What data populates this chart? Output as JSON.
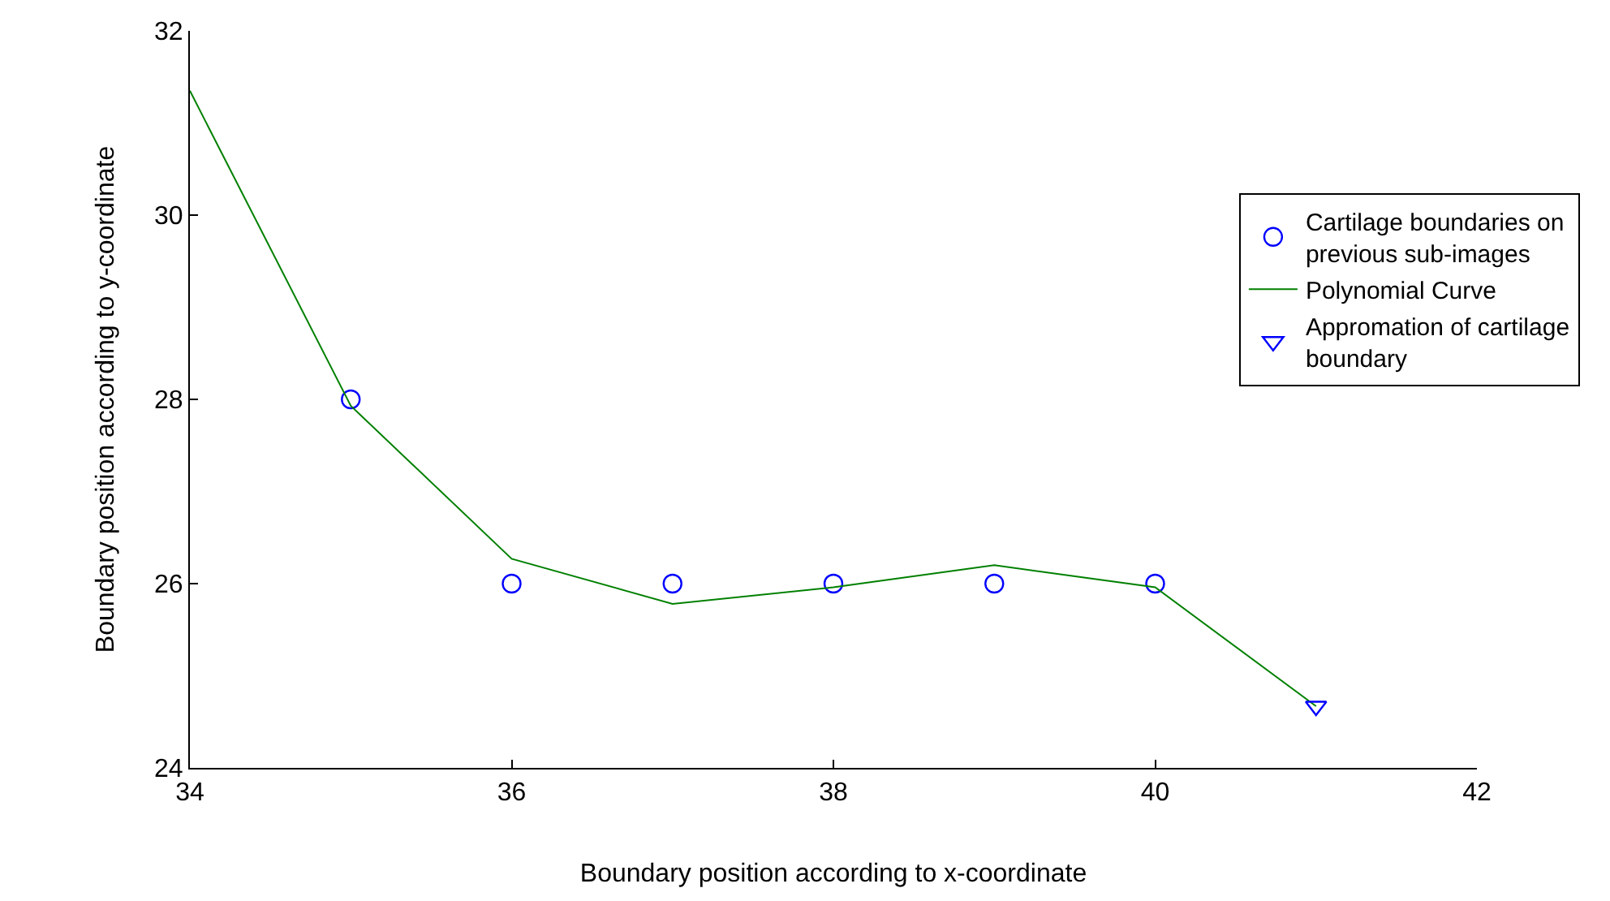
{
  "chart_data": {
    "type": "line",
    "xlabel": "Boundary position according to x-coordinate",
    "ylabel": "Boundary position according to y-coordinate",
    "xlim": [
      34,
      42
    ],
    "xticks": [
      34,
      36,
      38,
      40,
      42
    ],
    "ylim": [
      24,
      32
    ],
    "yticks": [
      24,
      26,
      28,
      30,
      32
    ],
    "legend": "top right",
    "series": [
      {
        "name": "Cartilage boundaries on previous sub-images",
        "type": "scatter",
        "marker": "circle",
        "color": "#0000ff",
        "x": [
          35,
          36,
          37,
          38,
          39,
          40
        ],
        "values": [
          28,
          26,
          26,
          26,
          26,
          26
        ]
      },
      {
        "name": "Polynomial Curve",
        "marker": "none",
        "color": "#008000",
        "x": [
          34,
          35,
          36,
          37,
          38,
          39,
          40,
          41
        ],
        "values": [
          31.35,
          27.93,
          26.27,
          25.78,
          25.96,
          26.2,
          25.96,
          24.67
        ]
      },
      {
        "name": "Appromation of cartilage boundary",
        "type": "scatter",
        "marker": "triangle",
        "color": "#0000ff",
        "x": [
          41
        ],
        "values": [
          24.67
        ]
      }
    ]
  }
}
